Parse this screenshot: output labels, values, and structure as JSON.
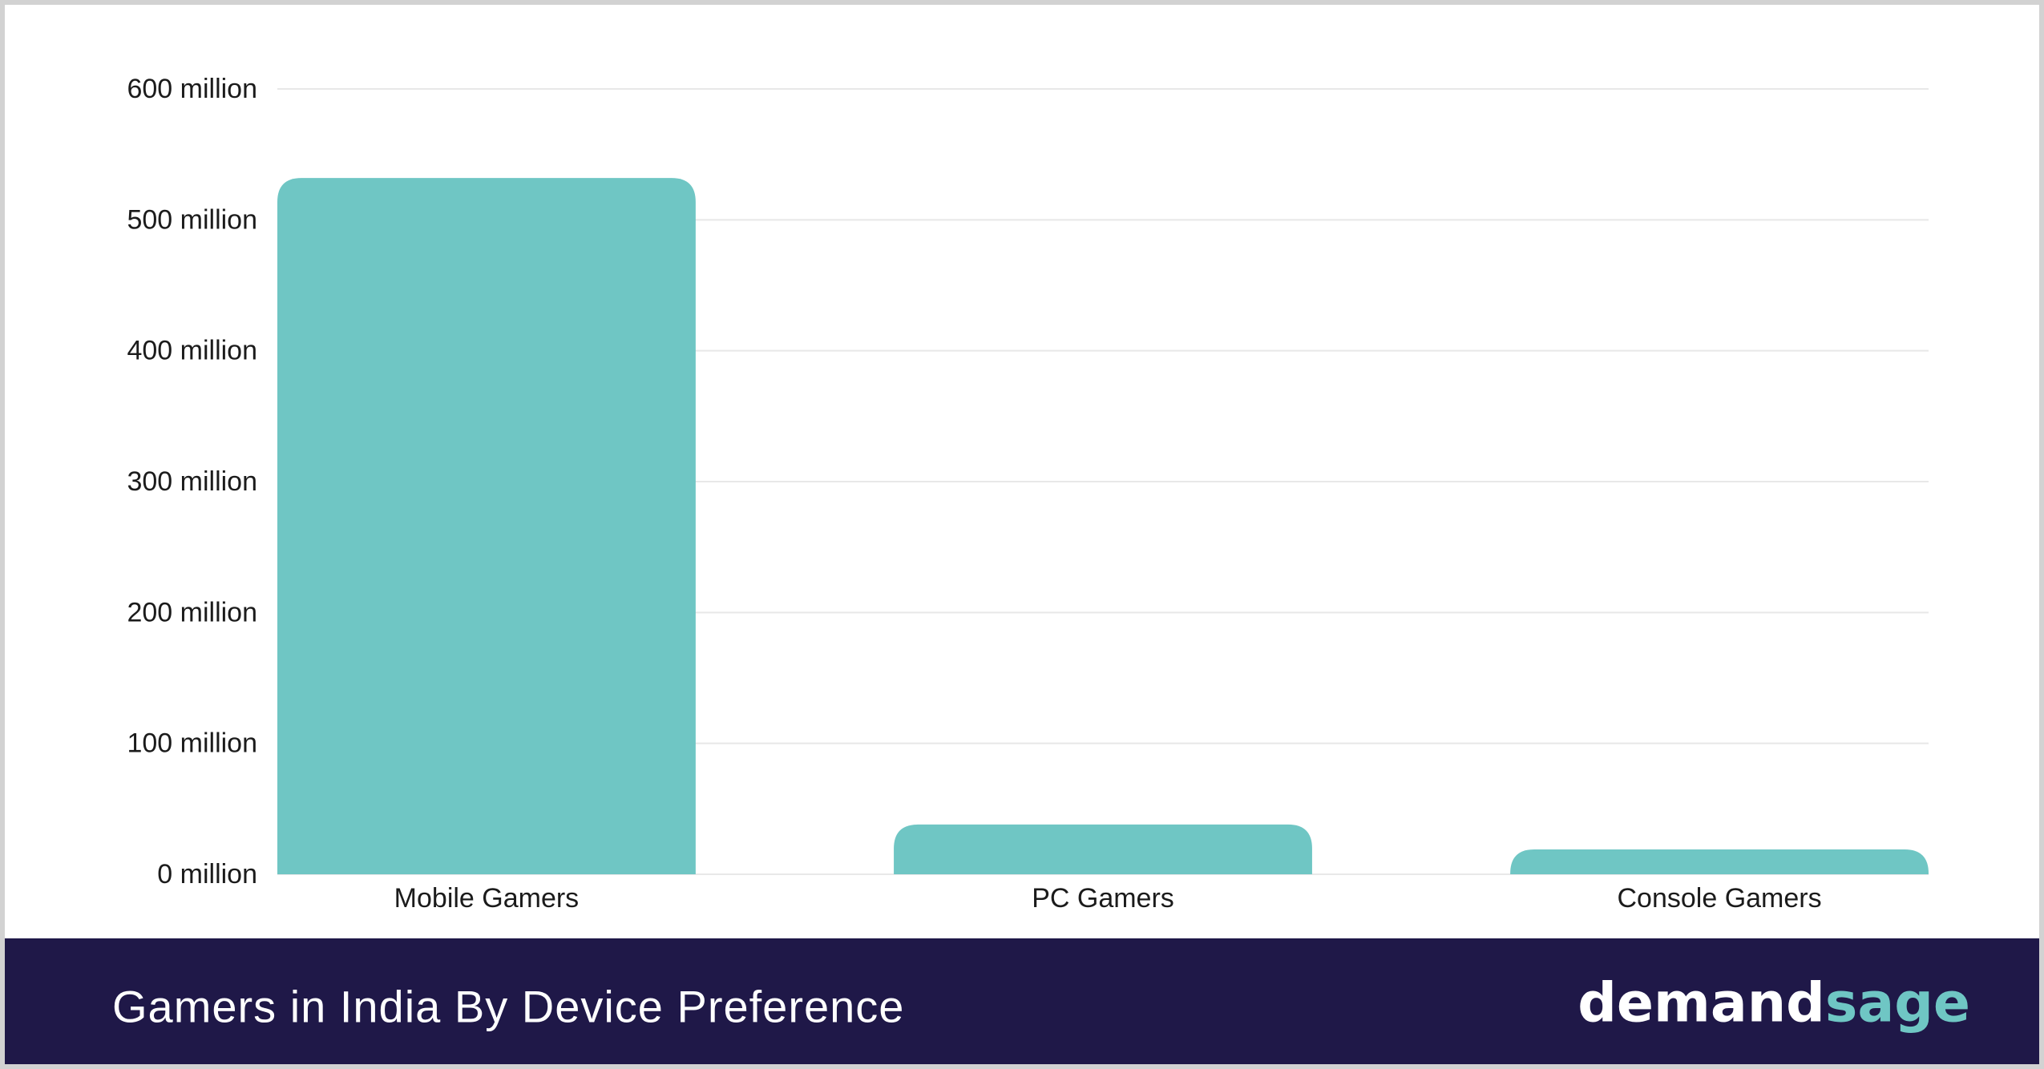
{
  "chart_data": {
    "type": "bar",
    "title": "Gamers in India By Device Preference",
    "categories": [
      "Mobile Gamers",
      "PC Gamers",
      "Console Gamers"
    ],
    "values": [
      532,
      38,
      19
    ],
    "unit": "million",
    "ylim": [
      0,
      600
    ],
    "y_ticks": [
      0,
      100,
      200,
      300,
      400,
      500,
      600
    ],
    "y_tick_labels": [
      "0 million",
      "100 million",
      "200 million",
      "300 million",
      "400 million",
      "500 million",
      "600 million"
    ],
    "xlabel": "",
    "ylabel": "",
    "grid": true,
    "bar_color": "#6fc6c4",
    "grid_color": "#e8e8e8"
  },
  "footer": {
    "title": "Gamers in India By Device Preference",
    "brand_part1": "demand",
    "brand_part2": "sage",
    "background_color": "#1f1848",
    "brand_accent_color": "#6fc6c4"
  }
}
